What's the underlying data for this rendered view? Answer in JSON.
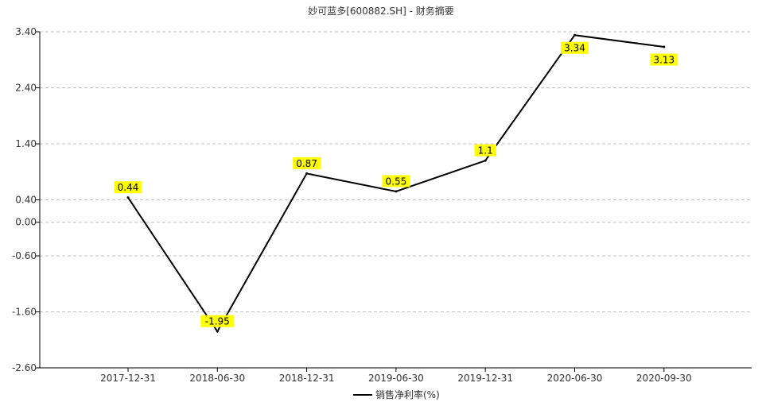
{
  "chart_data": {
    "type": "line",
    "title": "妙可蓝多[600882.SH] - 财务摘要",
    "categories": [
      "2017-12-31",
      "2018-06-30",
      "2018-12-31",
      "2019-06-30",
      "2019-12-31",
      "2020-06-30",
      "2020-09-30"
    ],
    "series": [
      {
        "name": "销售净利率(%)",
        "values": [
          0.44,
          -1.95,
          0.87,
          0.55,
          1.1,
          3.34,
          3.13
        ],
        "labels": [
          "0.44",
          "-1.95",
          "0.87",
          "0.55",
          "1.1",
          "3.34",
          "3.13"
        ]
      }
    ],
    "y_ticks": [
      "3.40",
      "2.40",
      "1.40",
      "0.40",
      "0.00",
      "-0.60",
      "-1.60",
      "-2.60"
    ],
    "y_tick_values": [
      3.4,
      2.4,
      1.4,
      0.4,
      0.0,
      -0.6,
      -1.6,
      -2.6
    ],
    "ylim": [
      -2.6,
      3.4
    ],
    "grid": true,
    "legend_position": "bottom-center",
    "colors": {
      "line": "#000000",
      "label_bg": "#ffff00",
      "grid": "#c0c0c0",
      "axis": "#000000"
    }
  }
}
